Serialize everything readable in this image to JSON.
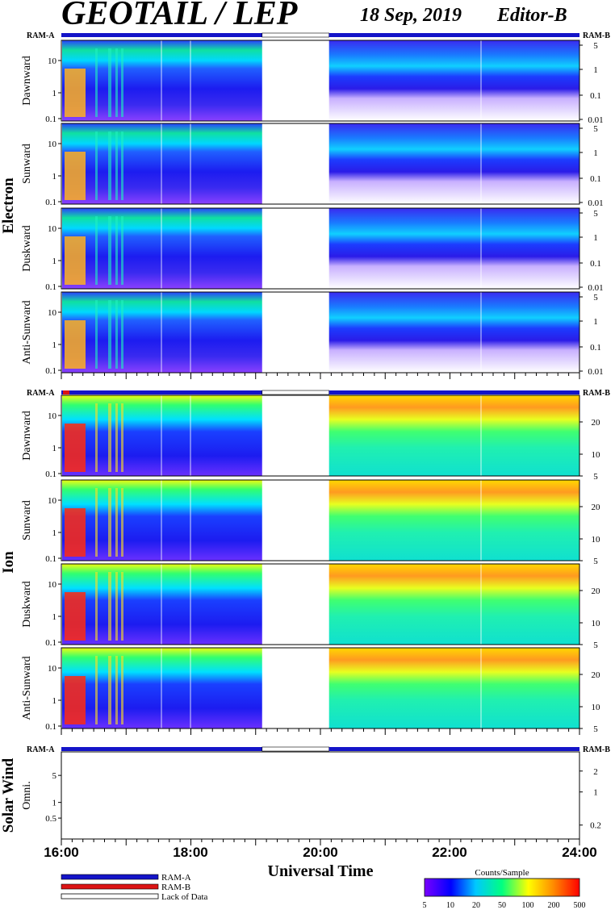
{
  "header": {
    "title": "GEOTAIL / LEP",
    "date": "18 Sep, 2019",
    "editor": "Editor-B"
  },
  "chart_data": {
    "type": "heatmap",
    "x_axis": {
      "label": "Universal Time",
      "range": [
        "16:00",
        "24:00"
      ],
      "tick_labels": [
        "16:00",
        "18:00",
        "20:00",
        "22:00",
        "24:00"
      ]
    },
    "data_gap": {
      "start": "19:06",
      "end": "20:08"
    },
    "sections": [
      {
        "name": "Electron",
        "panels": [
          {
            "label": "Dawnward",
            "left_ticks": [
              "10",
              "1",
              "0.1"
            ],
            "right_ticks": [
              "5",
              "1",
              "0.1",
              "0.01"
            ]
          },
          {
            "label": "Sunward",
            "left_ticks": [
              "10",
              "1",
              "0.1"
            ],
            "right_ticks": [
              "5",
              "1",
              "0.1",
              "0.01"
            ]
          },
          {
            "label": "Duskward",
            "left_ticks": [
              "10",
              "1",
              "0.1"
            ],
            "right_ticks": [
              "5",
              "1",
              "0.1",
              "0.01"
            ]
          },
          {
            "label": "Anti-Sunward",
            "left_ticks": [
              "10",
              "1",
              "0.1"
            ],
            "right_ticks": [
              "5",
              "1",
              "0.1",
              "0.01"
            ]
          }
        ]
      },
      {
        "name": "Ion",
        "panels": [
          {
            "label": "Dawnward",
            "left_ticks": [
              "10",
              "1",
              "0.1"
            ],
            "right_ticks": [
              "20",
              "10",
              "5"
            ]
          },
          {
            "label": "Sunward",
            "left_ticks": [
              "10",
              "1",
              "0.1"
            ],
            "right_ticks": [
              "20",
              "10",
              "5"
            ]
          },
          {
            "label": "Duskward",
            "left_ticks": [
              "10",
              "1",
              "0.1"
            ],
            "right_ticks": [
              "20",
              "10",
              "5"
            ]
          },
          {
            "label": "Anti-Sunward",
            "left_ticks": [
              "10",
              "1",
              "0.1"
            ],
            "right_ticks": [
              "20",
              "10",
              "5"
            ]
          }
        ]
      },
      {
        "name": "Solar Wind",
        "panels": [
          {
            "label": "Omni.",
            "left_ticks": [
              "5",
              "1",
              "0.5"
            ],
            "right_ticks": [
              "2",
              "1",
              "0.2"
            ]
          }
        ]
      }
    ],
    "ram_bars": {
      "left_label": "RAM-A",
      "right_label": "RAM-B"
    },
    "legend": [
      {
        "label": "RAM-A",
        "color": "#1414c8"
      },
      {
        "label": "RAM-B",
        "color": "#dc1414"
      },
      {
        "label": "Lack of Data",
        "color": "#ffffff"
      }
    ],
    "colorbar": {
      "title": "Counts/Sample",
      "scale": "log",
      "ticks": [
        "5",
        "10",
        "20",
        "50",
        "100",
        "200",
        "500"
      ],
      "colors": [
        "#7a00ff",
        "#0000ff",
        "#00c8ff",
        "#00ff80",
        "#ffff00",
        "#ff8c00",
        "#ff0000"
      ]
    }
  }
}
